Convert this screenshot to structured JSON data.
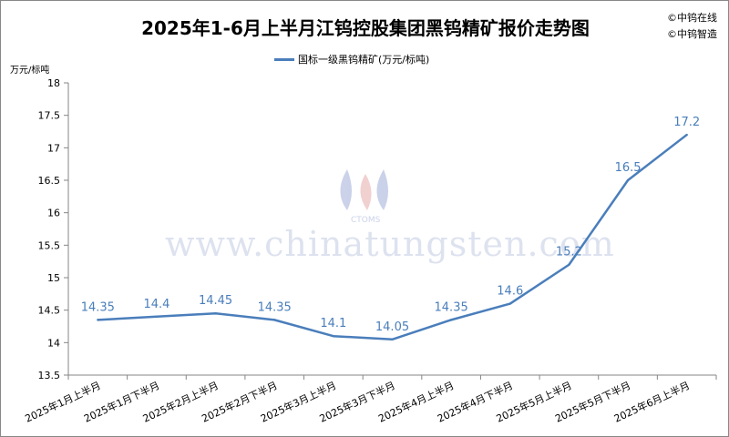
{
  "title": "2025年1-6月上半月江钨控股集团黑钨精矿报价走势图",
  "credits": [
    "©中钨在线",
    "©中钨智造"
  ],
  "watermark": "www.chinatungsten.com",
  "watermark_logo": "CTOMS",
  "chart_data": {
    "type": "line",
    "title": "2025年1-6月上半月江钨控股集团黑钨精矿报价走势图",
    "ylabel": "万元/标吨",
    "xlabel": "",
    "ylim": [
      13.5,
      18
    ],
    "yticks": [
      "13.5",
      "14",
      "14.5",
      "15",
      "15.5",
      "16",
      "16.5",
      "17",
      "17.5",
      "18"
    ],
    "grid": false,
    "legend": "top",
    "categories": [
      "2025年1月上半月",
      "2025年1月下半月",
      "2025年2月上半月",
      "2025年2月下半月",
      "2025年3月上半月",
      "2025年3月下半月",
      "2025年4月上半月",
      "2025年4月下半月",
      "2025年5月上半月",
      "2025年5月下半月",
      "2025年6月上半月"
    ],
    "series": [
      {
        "name": "国标一级黑钨精矿(万元/标吨)",
        "color": "#4a7ebb",
        "values": [
          14.35,
          14.4,
          14.45,
          14.35,
          14.1,
          14.05,
          14.35,
          14.6,
          15.2,
          16.5,
          17.2
        ]
      }
    ]
  }
}
